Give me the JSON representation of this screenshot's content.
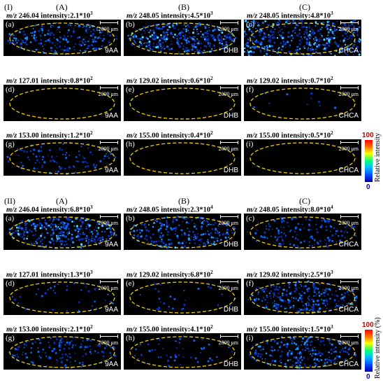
{
  "sections": [
    {
      "label": "(I)",
      "columns": [
        "(A)",
        "(B)",
        "(C)"
      ],
      "rows": [
        [
          {
            "mz": "246.04",
            "intensity": "2.1*10",
            "exp": "3",
            "letter": "(a)",
            "matrix": "9AA",
            "level": 0.45
          },
          {
            "mz": "248.05",
            "intensity": "4.5*10",
            "exp": "3",
            "letter": "(b)",
            "matrix": "DHB",
            "level": 0.75
          },
          {
            "mz": "248.05",
            "intensity": "4.8*10",
            "exp": "3",
            "letter": "(c)",
            "matrix": "CHCA",
            "level": 0.9
          }
        ],
        [
          {
            "mz": "127.01",
            "intensity": "0.8*10",
            "exp": "2",
            "letter": "(d)",
            "matrix": "9AA",
            "level": 0.0
          },
          {
            "mz": "129.02",
            "intensity": "0.6*10",
            "exp": "2",
            "letter": "(e)",
            "matrix": "DHB",
            "level": 0.0
          },
          {
            "mz": "129.02",
            "intensity": "0.7*10",
            "exp": "2",
            "letter": "(f)",
            "matrix": "CHCA",
            "level": 0.02
          }
        ],
        [
          {
            "mz": "153.00",
            "intensity": "1.2*10",
            "exp": "2",
            "letter": "(g)",
            "matrix": "9AA",
            "level": 0.2
          },
          {
            "mz": "155.00",
            "intensity": "0.4*10",
            "exp": "2",
            "letter": "(h)",
            "matrix": "DHB",
            "level": 0.0
          },
          {
            "mz": "155.00",
            "intensity": "0.5*10",
            "exp": "2",
            "letter": "(i)",
            "matrix": "CHCA",
            "level": 0.0
          }
        ]
      ],
      "colorbar": {
        "max": "100",
        "min": "0",
        "title": "Relative  intensity"
      }
    },
    {
      "label": "(II)",
      "columns": [
        "(A)",
        "(B)",
        "(C)"
      ],
      "rows": [
        [
          {
            "mz": "246.04",
            "intensity": "6.8*10",
            "exp": "3",
            "letter": "(a)",
            "matrix": "9AA",
            "level": 0.7
          },
          {
            "mz": "248.05",
            "intensity": "2.3*10",
            "exp": "4",
            "letter": "(b)",
            "matrix": "DHB",
            "level": 0.5
          },
          {
            "mz": "248.05",
            "intensity": "8.0*10",
            "exp": "4",
            "letter": "(c)",
            "matrix": "CHCA",
            "level": 0.3
          }
        ],
        [
          {
            "mz": "127.01",
            "intensity": "1.3*10",
            "exp": "3",
            "letter": "(d)",
            "matrix": "9AA",
            "level": 0.08
          },
          {
            "mz": "129.02",
            "intensity": "6.8*10",
            "exp": "2",
            "letter": "(e)",
            "matrix": "DHB",
            "level": 0.06
          },
          {
            "mz": "129.02",
            "intensity": "2.5*10",
            "exp": "3",
            "letter": "(f)",
            "matrix": "CHCA",
            "level": 0.55
          }
        ],
        [
          {
            "mz": "153.00",
            "intensity": "2.1*10",
            "exp": "2",
            "letter": "(g)",
            "matrix": "9AA",
            "level": 0.3
          },
          {
            "mz": "155.00",
            "intensity": "4.1*10",
            "exp": "2",
            "letter": "(h)",
            "matrix": "DHB",
            "level": 0.1
          },
          {
            "mz": "155.00",
            "intensity": "1.5*10",
            "exp": "3",
            "letter": "(i)",
            "matrix": "CHCA",
            "level": 0.5
          }
        ]
      ],
      "colorbar": {
        "max": "100",
        "min": "0",
        "title": "Relative intensity (%)"
      }
    }
  ],
  "scale_text": "2000  μm",
  "mz_prefix": "m/z",
  "intensity_prefix": "intensity:",
  "colors": {
    "outline": "#f0d000",
    "background": "#000000"
  }
}
